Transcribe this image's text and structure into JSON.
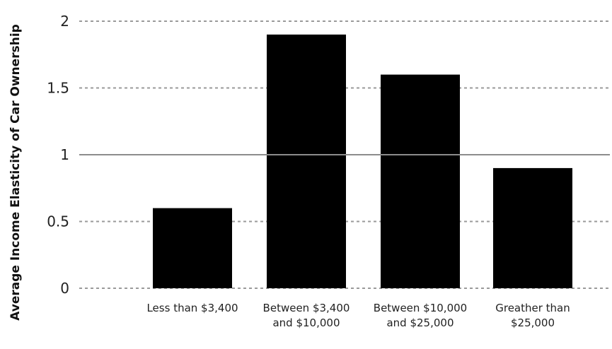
{
  "chart_data": {
    "type": "bar",
    "ylabel": "Average Income Elasticity of Car Ownership",
    "categories": [
      [
        "Less than $3,400"
      ],
      [
        "Between $3,400",
        "and $10,000"
      ],
      [
        "Between $10,000",
        "and $25,000"
      ],
      [
        "Greather than",
        "$25,000"
      ]
    ],
    "values": [
      0.6,
      1.9,
      1.6,
      0.9
    ],
    "ylim": [
      0,
      2
    ],
    "yticks": [
      "0",
      "0.5",
      "1",
      "1.5",
      "2"
    ],
    "grid": "dashed horizontal",
    "reference_line": 1,
    "bar_color": "#000000"
  }
}
